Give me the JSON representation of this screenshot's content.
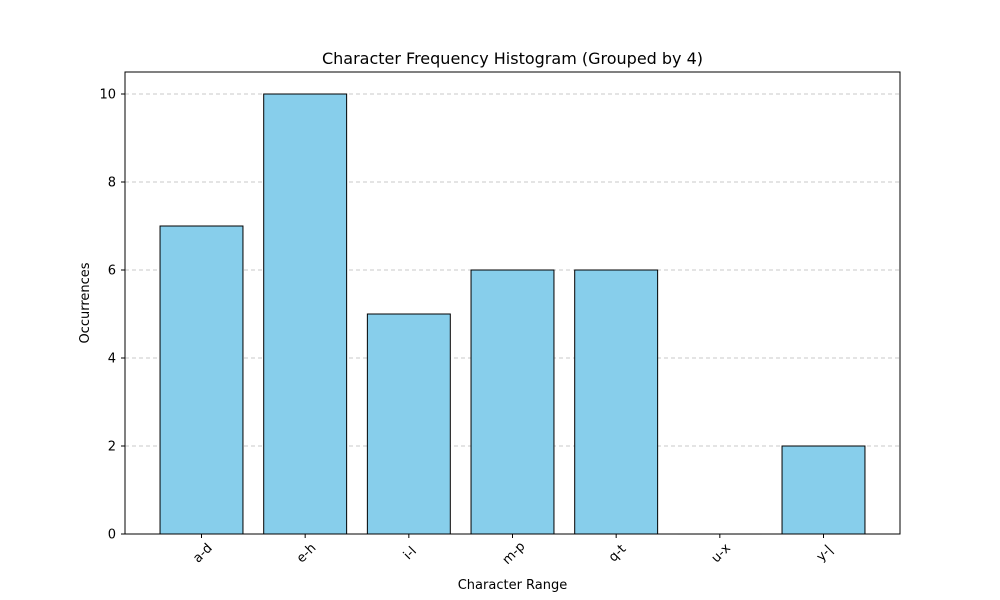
{
  "chart_data": {
    "type": "bar",
    "title": "Character Frequency Histogram (Grouped by 4)",
    "xlabel": "Character Range",
    "ylabel": "Occurrences",
    "categories": [
      "a-d",
      "e-h",
      "i-l",
      "m-p",
      "q-t",
      "u-x",
      "y-|"
    ],
    "values": [
      7,
      10,
      5,
      6,
      6,
      0,
      2
    ],
    "ylim": [
      0,
      10.5
    ],
    "yticks": [
      "0",
      "2",
      "4",
      "6",
      "8",
      "10"
    ],
    "grid": "y-dashed",
    "bar_color": "#87ceeb",
    "edge_color": "#000000",
    "grid_color": "#c8c8c8",
    "xtick_rotation": 45
  }
}
